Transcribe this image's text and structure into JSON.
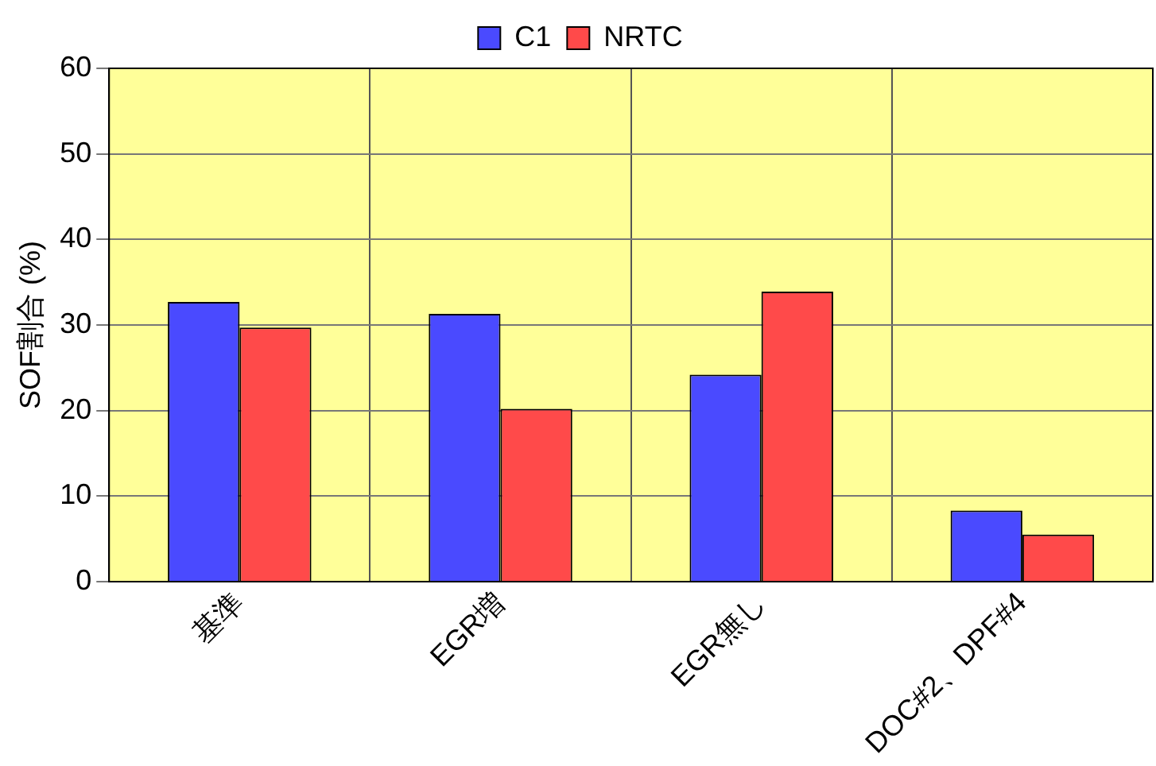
{
  "chart_data": {
    "type": "bar",
    "ylabel": "SOF割合 (%)",
    "categories": [
      "基準",
      "EGR増",
      "EGR無し",
      "DOC#2、DPF#4"
    ],
    "series": [
      {
        "name": "C1",
        "color": "#4a4aff",
        "values": [
          32.7,
          31.3,
          24.2,
          8.3
        ]
      },
      {
        "name": "NRTC",
        "color": "#ff4a4a",
        "values": [
          29.7,
          20.2,
          33.9,
          5.5
        ]
      }
    ],
    "ylim": [
      0,
      60
    ],
    "yticks": [
      0,
      10,
      20,
      30,
      40,
      50,
      60
    ],
    "grid": true,
    "legend": "top"
  }
}
